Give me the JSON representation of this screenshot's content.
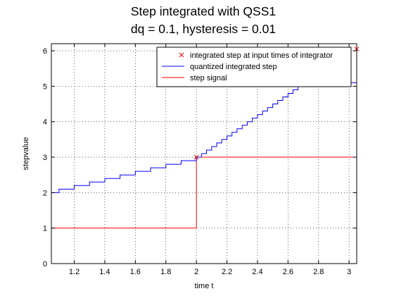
{
  "chart_data": {
    "type": "line",
    "title": "Step integrated with QSS1",
    "subtitle": "dq = 0.1, hysteresis = 0.01",
    "xlabel": "time t",
    "ylabel": "stepvalue",
    "xlim": [
      1.05,
      3.05
    ],
    "ylim": [
      0,
      6.2
    ],
    "xticks": [
      1.2,
      1.4,
      1.6,
      1.8,
      2,
      2.2,
      2.4,
      2.6,
      2.8,
      3
    ],
    "xtick_labels": [
      "1.2",
      "1.4",
      "1.6",
      "1.8",
      "2",
      "2.2",
      "2.4",
      "2.6",
      "2.8",
      "3"
    ],
    "yticks": [
      0,
      1,
      2,
      3,
      4,
      5,
      6
    ],
    "ytick_labels": [
      "0",
      "1",
      "2",
      "3",
      "4",
      "5",
      "6"
    ],
    "grid": true,
    "legend_position": "top-right",
    "series": [
      {
        "name": "integrated step at input times of integrator",
        "style": "marker",
        "color": "#ff0000",
        "marker": "x",
        "x": [
          2.0,
          3.05
        ],
        "y": [
          3.0,
          6.05
        ]
      },
      {
        "name": "quantized integrated step",
        "style": "step",
        "color": "#0000ff",
        "x": [
          1.05,
          1.1,
          1.2,
          1.3,
          1.4,
          1.5,
          1.6,
          1.7,
          1.8,
          1.9,
          2.0,
          2.033,
          2.066,
          2.1,
          2.133,
          2.166,
          2.2,
          2.233,
          2.266,
          2.3,
          2.333,
          2.366,
          2.4,
          2.433,
          2.466,
          2.5,
          2.533,
          2.566,
          2.6,
          2.633,
          2.666,
          2.7
        ],
        "y": [
          2.0,
          2.1,
          2.2,
          2.3,
          2.4,
          2.5,
          2.6,
          2.7,
          2.8,
          2.9,
          3.0,
          3.1,
          3.2,
          3.3,
          3.4,
          3.5,
          3.6,
          3.7,
          3.8,
          3.9,
          4.0,
          4.1,
          4.2,
          4.3,
          4.4,
          4.5,
          4.6,
          4.7,
          4.8,
          4.9,
          5.0,
          5.1
        ]
      },
      {
        "name": "step signal",
        "style": "step",
        "color": "#ff0000",
        "x": [
          1.05,
          2.0,
          3.05
        ],
        "y": [
          1.0,
          3.0,
          3.0
        ]
      }
    ]
  }
}
